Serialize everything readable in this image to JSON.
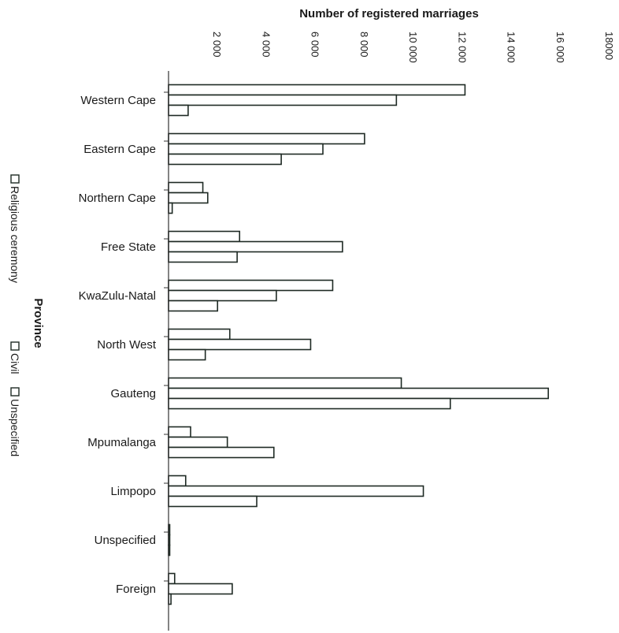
{
  "chart_data": {
    "type": "bar",
    "orientation": "horizontal",
    "title": "Number of registered marriages",
    "xlabel": "Number of registered marriages",
    "ylabel": "Province",
    "xlim": [
      0,
      18000
    ],
    "x_ticks": [
      {
        "value": 2000,
        "label": "2 000"
      },
      {
        "value": 4000,
        "label": "4 000"
      },
      {
        "value": 6000,
        "label": "6 000"
      },
      {
        "value": 8000,
        "label": "8 000"
      },
      {
        "value": 10000,
        "label": "10 000"
      },
      {
        "value": 12000,
        "label": "12 000"
      },
      {
        "value": 14000,
        "label": "14 000"
      },
      {
        "value": 16000,
        "label": "16 000"
      },
      {
        "value": 18000,
        "label": "18000"
      }
    ],
    "categories": [
      "Western  Cape",
      "Eastern Cape",
      "Northern Cape",
      "Free State",
      "KwaZulu-Natal",
      "North West",
      "Gauteng",
      "Mpumalanga",
      "Limpopo",
      "Unspecified",
      "Foreign"
    ],
    "series": [
      {
        "name": "Religious ceremony",
        "values": [
          12100,
          8000,
          1400,
          2900,
          6700,
          2500,
          9500,
          900,
          700,
          30,
          250
        ]
      },
      {
        "name": "Civil",
        "values": [
          9300,
          6300,
          1600,
          7100,
          4400,
          5800,
          15500,
          2400,
          10400,
          20,
          2600
        ]
      },
      {
        "name": "Unspecified",
        "values": [
          800,
          4600,
          150,
          2800,
          2000,
          1500,
          11500,
          4300,
          3600,
          40,
          100
        ]
      }
    ],
    "legend": {
      "placement": "left-vertical"
    },
    "grid": false,
    "colors": {
      "bar_fill": "#ffffff",
      "bar_stroke": "#1e2a24"
    }
  }
}
